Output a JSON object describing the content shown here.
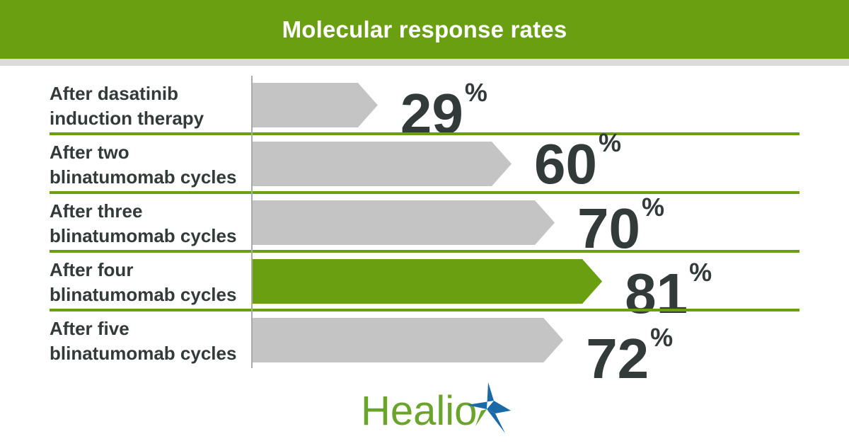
{
  "chart_data": {
    "type": "bar",
    "orientation": "horizontal",
    "title": "Molecular response rates",
    "categories": [
      [
        "After dasatinib",
        "induction therapy"
      ],
      [
        "After two",
        "blinatumomab cycles"
      ],
      [
        "After three",
        "blinatumomab cycles"
      ],
      [
        "After four",
        "blinatumomab cycles"
      ],
      [
        "After five",
        "blinatumomab cycles"
      ]
    ],
    "values": [
      29,
      60,
      70,
      81,
      72
    ],
    "unit": "%",
    "highlight_index": 3,
    "xlim": [
      0,
      100
    ]
  },
  "colors": {
    "accent": "#6a9f12",
    "bar": "#c4c4c4",
    "text": "#333a3a",
    "logo_green": "#6aa42a",
    "logo_blue": "#1b6aa8"
  },
  "logo": "Healio"
}
